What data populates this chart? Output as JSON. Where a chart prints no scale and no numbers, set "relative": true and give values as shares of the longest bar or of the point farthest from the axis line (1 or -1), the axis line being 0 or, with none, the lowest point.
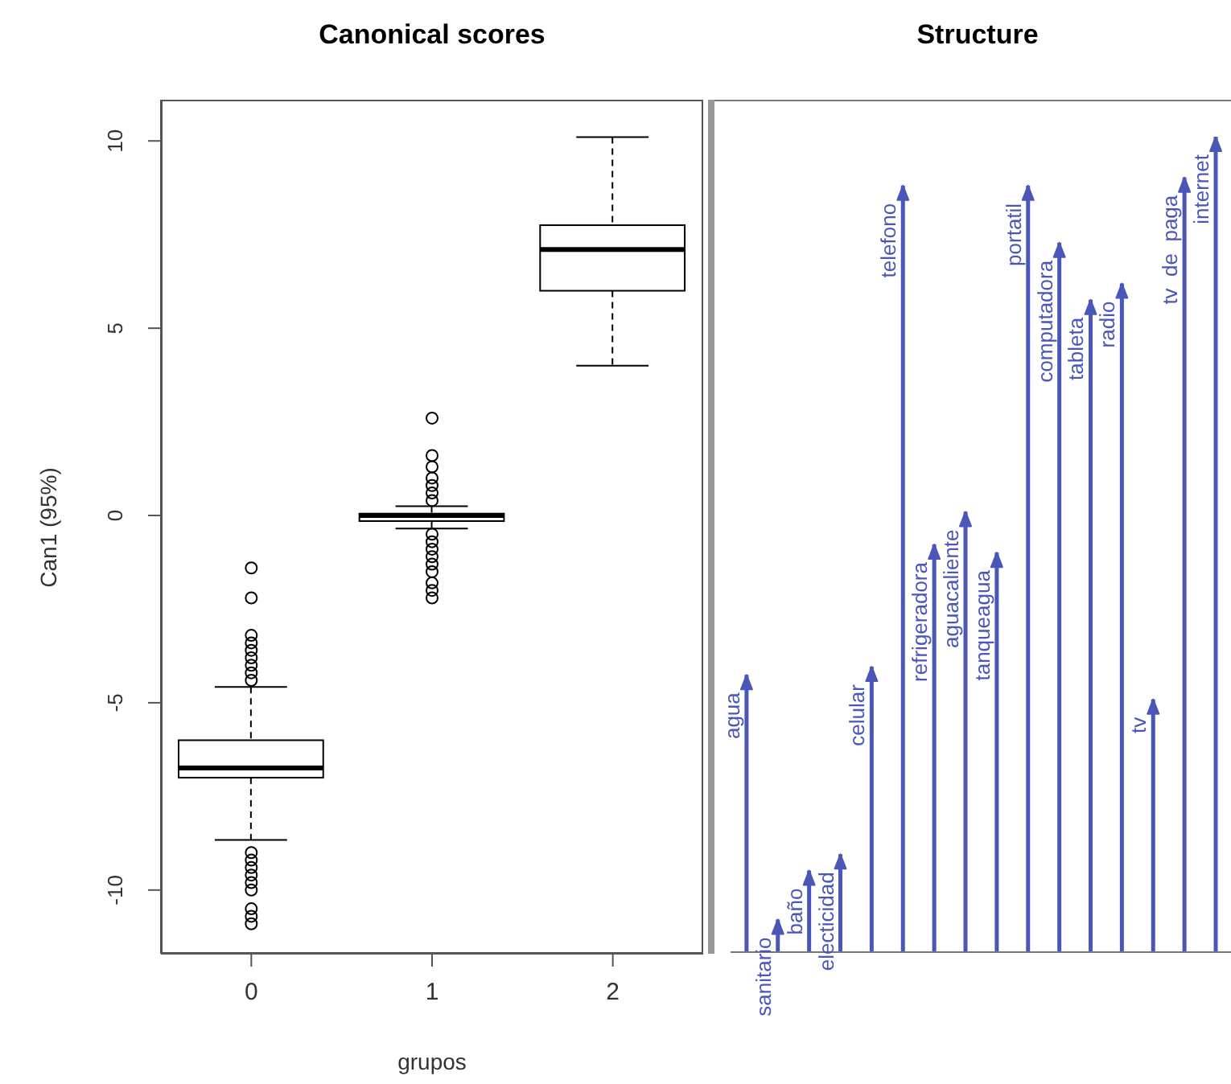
{
  "chart_data": [
    {
      "type": "box",
      "title": "Canonical scores",
      "xlabel": "grupos",
      "ylabel": "Can1 (95%)",
      "categories": [
        "0",
        "1",
        "2"
      ],
      "color": "#000000",
      "ylim": [
        -11.7,
        11.1
      ],
      "yticks": [
        -10,
        -5,
        0,
        5,
        10
      ],
      "boxes": [
        {
          "low": -8.66,
          "q1": -7.0,
          "median": -6.74,
          "q3": -6.0,
          "high": -4.58,
          "outliers": [
            -1.4,
            -2.2,
            -3.2,
            -3.4,
            -3.6,
            -3.8,
            -4.0,
            -4.2,
            -4.4,
            -9.0,
            -9.2,
            -9.4,
            -9.6,
            -9.8,
            -10.0,
            -10.5,
            -10.7,
            -10.9
          ]
        },
        {
          "low": -0.35,
          "q1": -0.15,
          "median": 0,
          "q3": 0.05,
          "high": 0.25,
          "outliers": [
            2.6,
            1.6,
            1.3,
            1.0,
            0.8,
            0.6,
            0.4,
            -0.5,
            -0.7,
            -0.9,
            -1.1,
            -1.3,
            -1.5,
            -1.8,
            -2.0,
            -2.2
          ]
        },
        {
          "low": 4.0,
          "q1": 6.0,
          "median": 7.1,
          "q3": 7.75,
          "high": 10.1
        }
      ]
    },
    {
      "type": "bar",
      "title": "Structure",
      "relative": true,
      "color": "#4a57b8",
      "categories": [
        "agua",
        "sanitario",
        "baño",
        "electicidad",
        "celular",
        "telefono",
        "refrigeradora",
        "aguacaliente",
        "tanqueagua",
        "portatil",
        "computadora",
        "tableta",
        "radio",
        "tv",
        "tv  de  paga",
        "internet"
      ],
      "values": [
        0.34,
        0.04,
        0.1,
        0.12,
        0.35,
        0.94,
        0.5,
        0.54,
        0.49,
        0.94,
        0.87,
        0.8,
        0.82,
        0.31,
        0.95,
        1
      ]
    }
  ]
}
